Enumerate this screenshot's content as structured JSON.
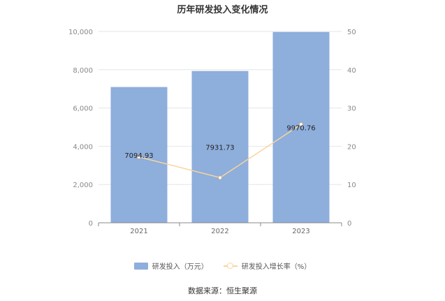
{
  "chart_data": {
    "type": "bar",
    "title": "历年研发投入变化情况",
    "categories": [
      "2021",
      "2022",
      "2023"
    ],
    "series": [
      {
        "name": "研发投入（万元）",
        "kind": "bar",
        "axis": "left",
        "values": [
          7094.93,
          7931.73,
          9970.76
        ],
        "labels": [
          "7094.93",
          "7931.73",
          "9970.76"
        ],
        "color": "#8eaedc"
      },
      {
        "name": "研发投入增长率（%）",
        "kind": "line",
        "axis": "right",
        "values": [
          17.2,
          11.8,
          25.7
        ],
        "color": "#f9d49b"
      }
    ],
    "y_left": {
      "min": 0,
      "max": 10000,
      "ticks": [
        "0",
        "2,000",
        "4,000",
        "6,000",
        "8,000",
        "10,000"
      ]
    },
    "y_right": {
      "min": 0,
      "max": 50,
      "ticks": [
        "0",
        "10",
        "20",
        "30",
        "40",
        "50"
      ]
    },
    "grid": true,
    "legend_position": "bottom"
  },
  "source": "数据来源：恒生聚源"
}
